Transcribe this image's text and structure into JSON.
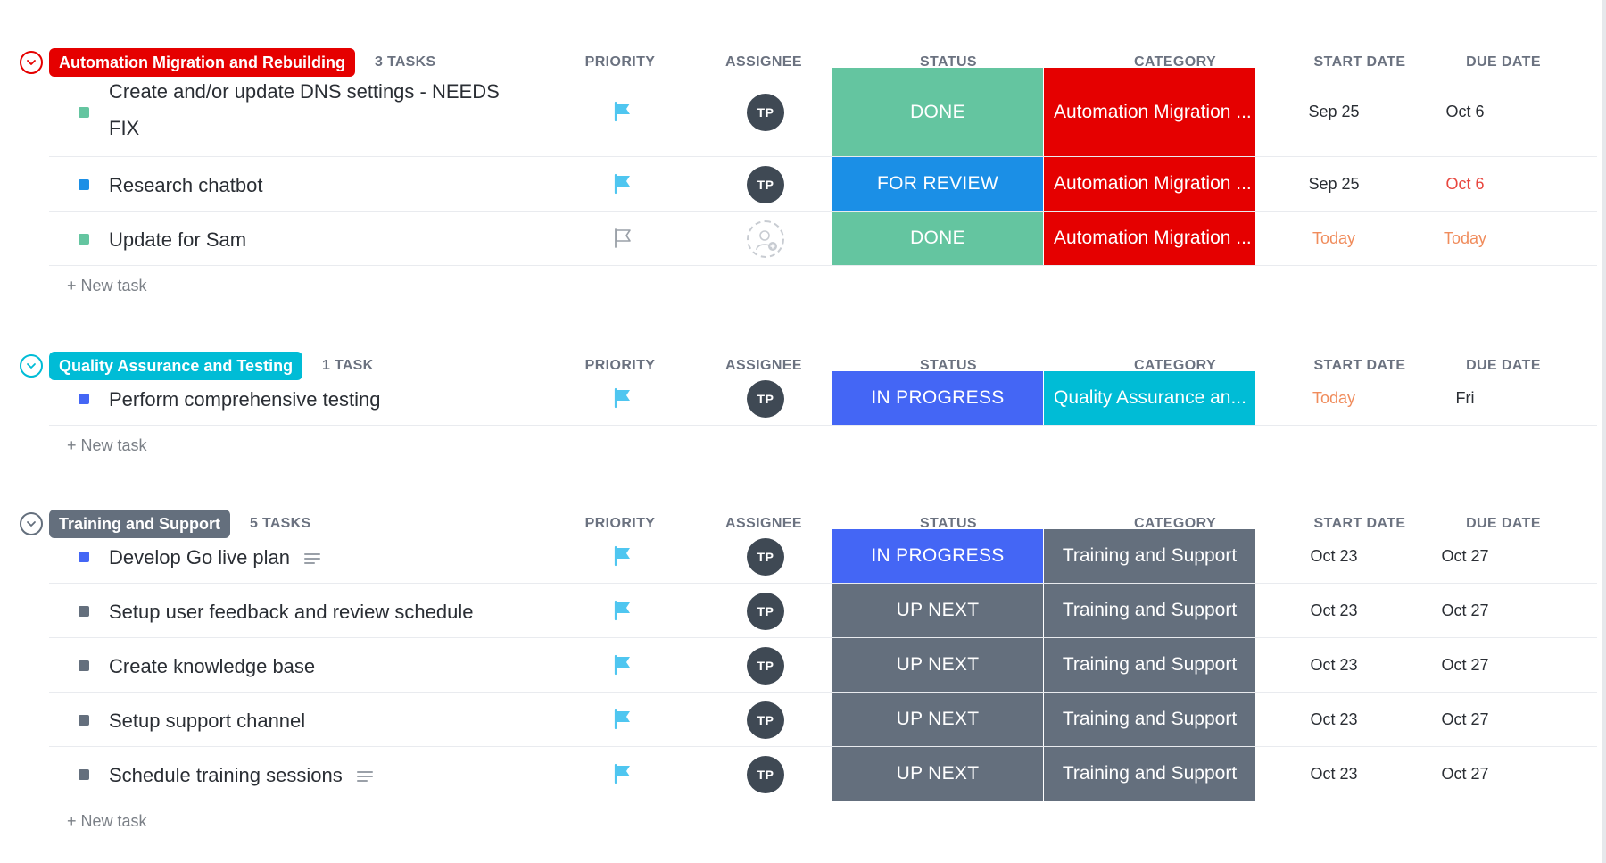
{
  "columns": {
    "priority": "PRIORITY",
    "assignee": "ASSIGNEE",
    "status": "STATUS",
    "category": "CATEGORY",
    "start_date": "START DATE",
    "due_date": "DUE DATE"
  },
  "new_task_label": "+ New task",
  "colors": {
    "done": "#64c5a0",
    "for_review": "#1b8fe6",
    "in_progress": "#4466f5",
    "up_next": "#646f7d",
    "cat_automation": "#e50000",
    "cat_qa": "#00bcd6",
    "cat_training": "#646f7d",
    "flag_blue": "#4fc6f0",
    "date_red": "#e8473f",
    "date_orange": "#f08c5c"
  },
  "groups": [
    {
      "title": "Automation Migration and Rebuilding",
      "count": "3 TASKS",
      "color": "#e50000",
      "tasks": [
        {
          "name": "Create and/or update DNS settings - NEEDS",
          "name2": "FIX",
          "dot": "#64c5a0",
          "priority": "flag-filled",
          "assignee": "TP",
          "status": "DONE",
          "status_color": "#64c5a0",
          "category": "Automation Migration ...",
          "category_color": "#e50000",
          "start": "Sep 25",
          "due": "Oct 6",
          "start_color": "#2a2e34",
          "due_color": "#2a2e34",
          "has_desc": false
        },
        {
          "name": "Research chatbot",
          "dot": "#1b8fe6",
          "priority": "flag-filled",
          "assignee": "TP",
          "status": "FOR REVIEW",
          "status_color": "#1b8fe6",
          "category": "Automation Migration ...",
          "category_color": "#e50000",
          "start": "Sep 25",
          "due": "Oct 6",
          "start_color": "#2a2e34",
          "due_color": "#e8473f",
          "has_desc": false
        },
        {
          "name": "Update for Sam",
          "dot": "#64c5a0",
          "priority": "flag-empty",
          "assignee": "",
          "status": "DONE",
          "status_color": "#64c5a0",
          "category": "Automation Migration ...",
          "category_color": "#e50000",
          "start": "Today",
          "due": "Today",
          "start_color": "#f08c5c",
          "due_color": "#f08c5c",
          "has_desc": false
        }
      ]
    },
    {
      "title": "Quality Assurance and Testing",
      "count": "1 TASK",
      "color": "#00bcd6",
      "tasks": [
        {
          "name": "Perform comprehensive testing",
          "dot": "#4466f5",
          "priority": "flag-filled",
          "assignee": "TP",
          "status": "IN PROGRESS",
          "status_color": "#4466f5",
          "category": "Quality Assurance an...",
          "category_color": "#00bcd6",
          "start": "Today",
          "due": "Fri",
          "start_color": "#f08c5c",
          "due_color": "#2a2e34",
          "has_desc": false
        }
      ]
    },
    {
      "title": "Training and Support",
      "count": "5 TASKS",
      "color": "#646f7d",
      "tasks": [
        {
          "name": "Develop Go live plan",
          "dot": "#4466f5",
          "priority": "flag-filled",
          "assignee": "TP",
          "status": "IN PROGRESS",
          "status_color": "#4466f5",
          "category": "Training and Support",
          "category_color": "#646f7d",
          "start": "Oct 23",
          "due": "Oct 27",
          "start_color": "#2a2e34",
          "due_color": "#2a2e34",
          "has_desc": true
        },
        {
          "name": "Setup user feedback and review schedule",
          "dot": "#646f7d",
          "priority": "flag-filled",
          "assignee": "TP",
          "status": "UP NEXT",
          "status_color": "#646f7d",
          "category": "Training and Support",
          "category_color": "#646f7d",
          "start": "Oct 23",
          "due": "Oct 27",
          "start_color": "#2a2e34",
          "due_color": "#2a2e34",
          "has_desc": false
        },
        {
          "name": "Create knowledge base",
          "dot": "#646f7d",
          "priority": "flag-filled",
          "assignee": "TP",
          "status": "UP NEXT",
          "status_color": "#646f7d",
          "category": "Training and Support",
          "category_color": "#646f7d",
          "start": "Oct 23",
          "due": "Oct 27",
          "start_color": "#2a2e34",
          "due_color": "#2a2e34",
          "has_desc": false
        },
        {
          "name": "Setup support channel",
          "dot": "#646f7d",
          "priority": "flag-filled",
          "assignee": "TP",
          "status": "UP NEXT",
          "status_color": "#646f7d",
          "category": "Training and Support",
          "category_color": "#646f7d",
          "start": "Oct 23",
          "due": "Oct 27",
          "start_color": "#2a2e34",
          "due_color": "#2a2e34",
          "has_desc": false
        },
        {
          "name": "Schedule training sessions",
          "dot": "#646f7d",
          "priority": "flag-filled",
          "assignee": "TP",
          "status": "UP NEXT",
          "status_color": "#646f7d",
          "category": "Training and Support",
          "category_color": "#646f7d",
          "start": "Oct 23",
          "due": "Oct 27",
          "start_color": "#2a2e34",
          "due_color": "#2a2e34",
          "has_desc": true
        }
      ]
    }
  ]
}
